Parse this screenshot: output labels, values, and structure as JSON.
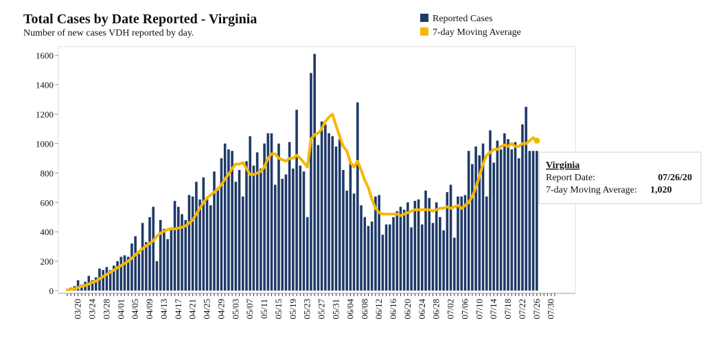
{
  "chart_data": {
    "type": "bar_line",
    "title": "Total Cases by Date Reported - Virginia",
    "subtitle": "Number of new cases VDH reported by day.",
    "categories": [
      null,
      null,
      null,
      "03/20",
      null,
      null,
      null,
      "03/24",
      null,
      null,
      null,
      "03/28",
      null,
      null,
      null,
      "04/01",
      null,
      null,
      null,
      "04/05",
      null,
      null,
      null,
      "04/09",
      null,
      null,
      null,
      "04/13",
      null,
      null,
      null,
      "04/17",
      null,
      null,
      null,
      "04/21",
      null,
      null,
      null,
      "04/25",
      null,
      null,
      null,
      "04/29",
      null,
      null,
      null,
      "05/03",
      null,
      null,
      null,
      "05/07",
      null,
      null,
      null,
      "05/11",
      null,
      null,
      null,
      "05/15",
      null,
      null,
      null,
      "05/19",
      null,
      null,
      null,
      "05/23",
      null,
      null,
      null,
      "05/27",
      null,
      null,
      null,
      "05/31",
      null,
      null,
      null,
      "06/04",
      null,
      null,
      null,
      "06/08",
      null,
      null,
      null,
      "06/12",
      null,
      null,
      null,
      "06/16",
      null,
      null,
      null,
      "06/20",
      null,
      null,
      null,
      "06/24",
      null,
      null,
      null,
      "06/28",
      null,
      null,
      null,
      "07/02",
      null,
      null,
      null,
      "07/06",
      null,
      null,
      null,
      "07/10",
      null,
      null,
      null,
      "07/14",
      null,
      null,
      null,
      "07/18",
      null,
      null,
      null,
      "07/22",
      null,
      null,
      null,
      "07/26",
      null,
      null,
      null,
      "07/30",
      null
    ],
    "series": [
      {
        "name": "Reported Cases",
        "color": "#1f3a68",
        "kind": "bar",
        "values": [
          10,
          20,
          30,
          70,
          40,
          60,
          100,
          70,
          90,
          150,
          140,
          160,
          140,
          170,
          200,
          230,
          240,
          230,
          320,
          370,
          250,
          460,
          330,
          500,
          570,
          200,
          480,
          420,
          350,
          430,
          610,
          570,
          520,
          480,
          650,
          640,
          740,
          620,
          770,
          620,
          580,
          810,
          700,
          900,
          1000,
          960,
          950,
          740,
          820,
          640,
          880,
          1050,
          850,
          940,
          830,
          1000,
          1070,
          1070,
          720,
          1000,
          760,
          790,
          1010,
          830,
          1230,
          850,
          810,
          500,
          1480,
          1610,
          990,
          1150,
          1130,
          1070,
          1050,
          980,
          1030,
          820,
          680,
          880,
          660,
          1280,
          580,
          500,
          440,
          470,
          640,
          650,
          380,
          450,
          450,
          500,
          540,
          570,
          550,
          600,
          430,
          610,
          620,
          450,
          680,
          630,
          460,
          600,
          500,
          410,
          670,
          720,
          360,
          640,
          640,
          650,
          950,
          860,
          980,
          920,
          1000,
          640,
          1090,
          870,
          1020,
          960,
          1070,
          1030,
          960,
          1010,
          900,
          1130,
          1250,
          950,
          950,
          950,
          null,
          null,
          null,
          null,
          null
        ]
      },
      {
        "name": "7-day Moving Average",
        "color": "#f5b800",
        "kind": "line",
        "values": [
          5,
          8,
          12,
          20,
          28,
          35,
          45,
          55,
          65,
          80,
          95,
          110,
          125,
          140,
          155,
          170,
          185,
          200,
          220,
          245,
          265,
          285,
          305,
          320,
          340,
          370,
          390,
          405,
          415,
          420,
          420,
          425,
          430,
          440,
          460,
          480,
          520,
          560,
          600,
          630,
          650,
          670,
          690,
          720,
          760,
          790,
          830,
          860,
          860,
          870,
          830,
          790,
          790,
          800,
          810,
          840,
          900,
          930,
          930,
          900,
          890,
          880,
          900,
          900,
          920,
          900,
          870,
          840,
          1030,
          1060,
          1070,
          1100,
          1150,
          1180,
          1200,
          1120,
          1050,
          980,
          950,
          870,
          840,
          880,
          820,
          750,
          700,
          620,
          560,
          530,
          520,
          520,
          520,
          520,
          520,
          510,
          520,
          530,
          540,
          550,
          550,
          550,
          550,
          550,
          540,
          550,
          560,
          560,
          570,
          560,
          570,
          580,
          560,
          580,
          600,
          640,
          700,
          780,
          860,
          920,
          940,
          960,
          960,
          980,
          990,
          980,
          1000,
          980,
          980,
          1000,
          1000,
          1020,
          1040,
          1020,
          null,
          null,
          null,
          null,
          null
        ]
      }
    ],
    "ylim": [
      0,
      1650
    ],
    "yticks": [
      0,
      200,
      400,
      600,
      800,
      1000,
      1200,
      1400,
      1600
    ],
    "grid": false,
    "tooltip": {
      "title": "Virginia",
      "date_label": "Report Date:",
      "date": "07/26/20",
      "avg_label": "7-day Moving Average:",
      "avg": "1,020"
    }
  }
}
